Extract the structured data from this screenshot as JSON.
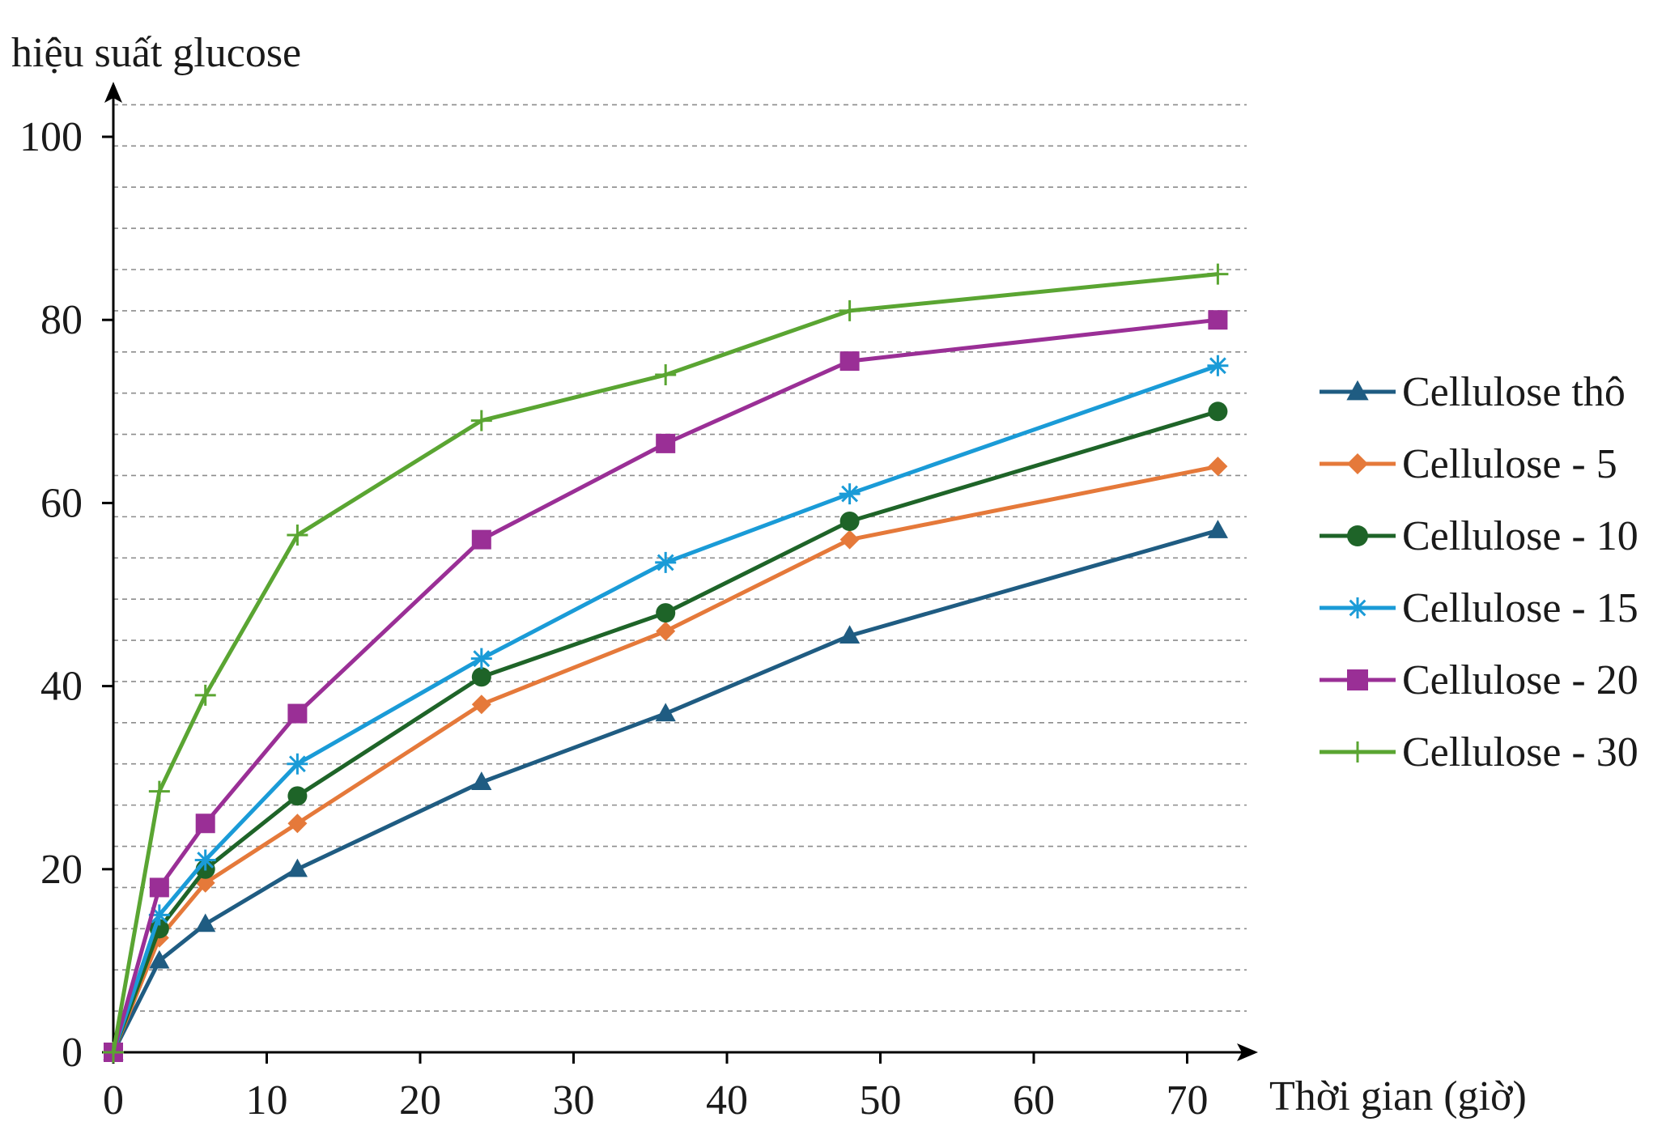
{
  "chart_data": {
    "type": "line",
    "ylabel": "hiệu suất glucose",
    "xlabel": "Thời gian (giờ)",
    "x": [
      0,
      3,
      6,
      12,
      24,
      36,
      48,
      72
    ],
    "xlim": [
      0,
      74
    ],
    "ylim": [
      0,
      104
    ],
    "xticks": [
      0,
      10,
      20,
      30,
      40,
      50,
      60,
      70
    ],
    "yticks": [
      0,
      20,
      40,
      60,
      80,
      100
    ],
    "grid": true,
    "legend_position": "right",
    "series": [
      {
        "name": "Cellulose thô",
        "color": "#1f5c82",
        "marker": "triangle",
        "values": [
          0,
          10,
          14,
          20,
          29.5,
          37,
          45.5,
          57
        ]
      },
      {
        "name": "Cellulose - 5",
        "color": "#e5793a",
        "marker": "diamond",
        "values": [
          0,
          12.5,
          18.5,
          25,
          38,
          46,
          56,
          64
        ]
      },
      {
        "name": "Cellulose - 10",
        "color": "#1e6428",
        "marker": "circle",
        "values": [
          0,
          13.5,
          20,
          28,
          41,
          48,
          58,
          70
        ]
      },
      {
        "name": "Cellulose - 15",
        "color": "#1a9bd7",
        "marker": "asterisk",
        "values": [
          0,
          15,
          21,
          31.5,
          43,
          53.5,
          61,
          75
        ]
      },
      {
        "name": "Cellulose - 20",
        "color": "#9a2f96",
        "marker": "square",
        "values": [
          0,
          18,
          25,
          37,
          56,
          66.5,
          75.5,
          80
        ]
      },
      {
        "name": "Cellulose - 30",
        "color": "#5aa532",
        "marker": "plus",
        "values": [
          0,
          28.5,
          39,
          56.5,
          69,
          74,
          81,
          85
        ]
      }
    ]
  }
}
